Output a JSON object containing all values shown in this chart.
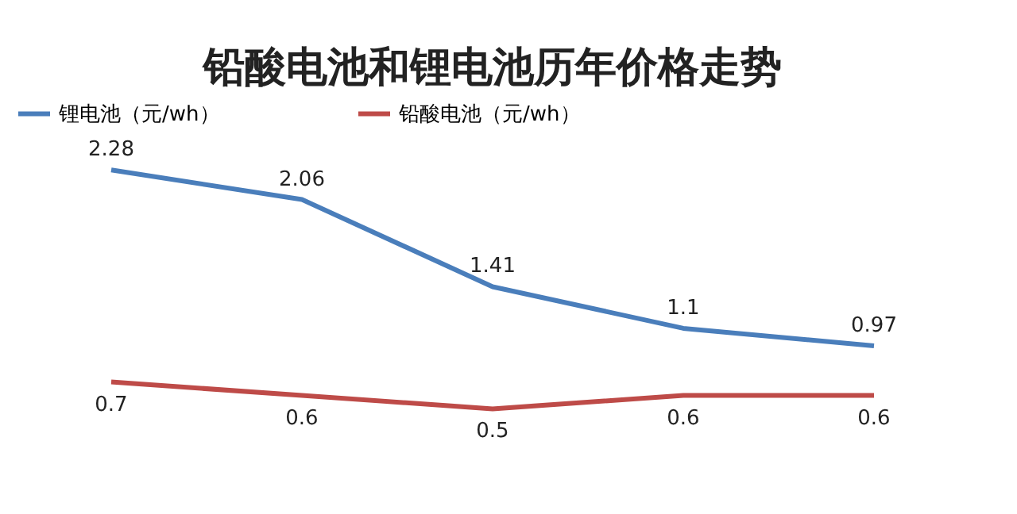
{
  "chart_data": {
    "type": "line",
    "title": "铅酸电池和锂电池历年价格走势",
    "categories": [
      null,
      null,
      null,
      null,
      null
    ],
    "series": [
      {
        "name": "锂电池（元/wh）",
        "color": "#4a7ebb",
        "values": [
          2.28,
          2.06,
          1.41,
          1.1,
          0.97
        ]
      },
      {
        "name": "铅酸电池（元/wh）",
        "color": "#be4b48",
        "values": [
          0.7,
          0.6,
          0.5,
          0.6,
          0.6
        ]
      }
    ],
    "data_labels": true,
    "legend": "top",
    "grid": false,
    "tick_labels": false,
    "marker": "none",
    "line_style": "solid"
  }
}
